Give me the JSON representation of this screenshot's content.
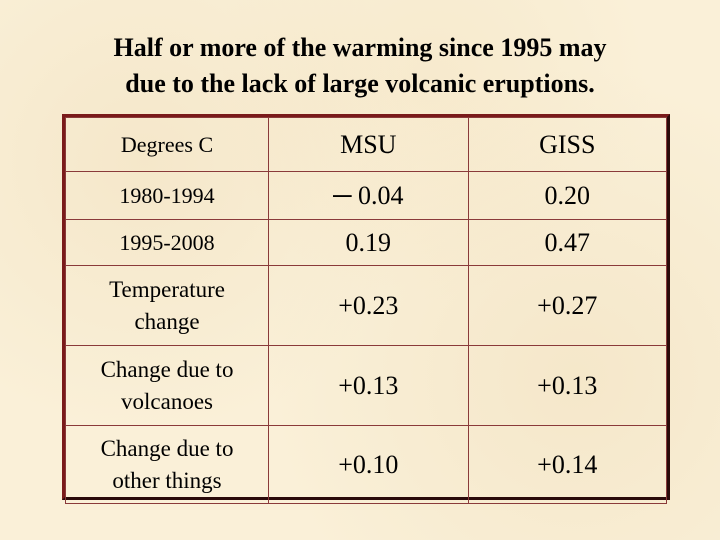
{
  "slide": {
    "title_line1": "Half or more of the warming since 1995 may",
    "title_line2": "due to the lack of large volcanic eruptions."
  },
  "table": {
    "header": {
      "col1": "Degrees C",
      "col2": "MSU",
      "col3": "GISS"
    },
    "rows": [
      {
        "label": "1980-1994",
        "msu": "─ 0.04",
        "giss": "0.20"
      },
      {
        "label": "1995-2008",
        "msu": "0.19",
        "giss": "0.47"
      },
      {
        "label_line1": "Temperature",
        "label_line2": "change",
        "msu": "+0.23",
        "giss": "+0.27"
      },
      {
        "label_line1": "Change due to",
        "label_line2": "volcanoes",
        "msu": "+0.13",
        "giss": "+0.13"
      },
      {
        "label_line1": "Change due to",
        "label_line2": "other things",
        "msu": "+0.10",
        "giss": "+0.14"
      }
    ]
  },
  "colors": {
    "background": "#faf0d8",
    "border": "#7a1a1a"
  }
}
